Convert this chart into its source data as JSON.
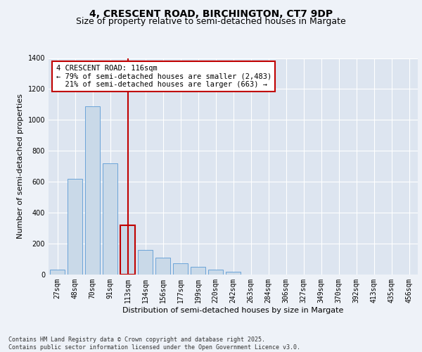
{
  "title_line1": "4, CRESCENT ROAD, BIRCHINGTON, CT7 9DP",
  "title_line2": "Size of property relative to semi-detached houses in Margate",
  "xlabel": "Distribution of semi-detached houses by size in Margate",
  "ylabel": "Number of semi-detached properties",
  "categories": [
    "27sqm",
    "48sqm",
    "70sqm",
    "91sqm",
    "113sqm",
    "134sqm",
    "156sqm",
    "177sqm",
    "199sqm",
    "220sqm",
    "242sqm",
    "263sqm",
    "284sqm",
    "306sqm",
    "327sqm",
    "349sqm",
    "370sqm",
    "392sqm",
    "413sqm",
    "435sqm",
    "456sqm"
  ],
  "values": [
    30,
    620,
    1090,
    720,
    320,
    160,
    110,
    75,
    50,
    30,
    20,
    0,
    0,
    0,
    0,
    0,
    0,
    0,
    0,
    0,
    0
  ],
  "bar_color": "#c9d9e8",
  "bar_edge_color": "#5b9bd5",
  "highlight_bar_index": 4,
  "highlight_bar_edge_color": "#c00000",
  "vline_color": "#c00000",
  "annotation_box_edge_color": "#c00000",
  "annotation_text": "4 CRESCENT ROAD: 116sqm\n← 79% of semi-detached houses are smaller (2,483)\n  21% of semi-detached houses are larger (663) →",
  "ylim": [
    0,
    1400
  ],
  "yticks": [
    0,
    200,
    400,
    600,
    800,
    1000,
    1200,
    1400
  ],
  "background_color": "#eef2f8",
  "plot_bg_color": "#dde5f0",
  "footer_text": "Contains HM Land Registry data © Crown copyright and database right 2025.\nContains public sector information licensed under the Open Government Licence v3.0.",
  "title_fontsize": 10,
  "subtitle_fontsize": 9,
  "axis_label_fontsize": 8,
  "tick_fontsize": 7,
  "annotation_fontsize": 7.5,
  "footer_fontsize": 6
}
